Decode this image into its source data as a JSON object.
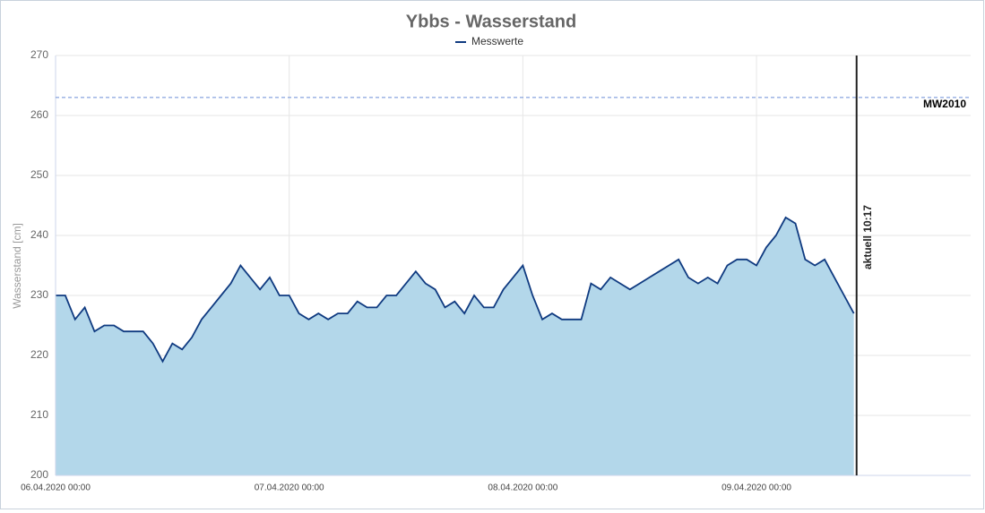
{
  "chart_data": {
    "type": "area",
    "title": "Ybbs - Wasserstand",
    "y_label": "Wasserstand [cm]",
    "legend": "top",
    "grid": true,
    "xlim": [
      "06.04.2020 00:00",
      "09.04.2020 22:00"
    ],
    "xticks": [
      "06.04.2020 00:00",
      "07.04.2020 00:00",
      "08.04.2020 00:00",
      "09.04.2020 00:00"
    ],
    "ylim": [
      200,
      270
    ],
    "yticks": [
      200,
      210,
      220,
      230,
      240,
      250,
      260,
      270
    ],
    "reference_line": {
      "value": 263,
      "label": "MW2010",
      "color": "#6b8fd6"
    },
    "current": {
      "x": "09.04.2020 10:17",
      "label": "aktuell 10:17"
    },
    "x": [
      "06.04.2020 00:00",
      "06.04.2020 01:00",
      "06.04.2020 02:00",
      "06.04.2020 03:00",
      "06.04.2020 04:00",
      "06.04.2020 05:00",
      "06.04.2020 06:00",
      "06.04.2020 07:00",
      "06.04.2020 08:00",
      "06.04.2020 09:00",
      "06.04.2020 10:00",
      "06.04.2020 11:00",
      "06.04.2020 12:00",
      "06.04.2020 13:00",
      "06.04.2020 14:00",
      "06.04.2020 15:00",
      "06.04.2020 16:00",
      "06.04.2020 17:00",
      "06.04.2020 18:00",
      "06.04.2020 19:00",
      "06.04.2020 20:00",
      "06.04.2020 21:00",
      "06.04.2020 22:00",
      "06.04.2020 23:00",
      "07.04.2020 00:00",
      "07.04.2020 01:00",
      "07.04.2020 02:00",
      "07.04.2020 03:00",
      "07.04.2020 04:00",
      "07.04.2020 05:00",
      "07.04.2020 06:00",
      "07.04.2020 07:00",
      "07.04.2020 08:00",
      "07.04.2020 09:00",
      "07.04.2020 10:00",
      "07.04.2020 11:00",
      "07.04.2020 12:00",
      "07.04.2020 13:00",
      "07.04.2020 14:00",
      "07.04.2020 15:00",
      "07.04.2020 16:00",
      "07.04.2020 17:00",
      "07.04.2020 18:00",
      "07.04.2020 19:00",
      "07.04.2020 20:00",
      "07.04.2020 21:00",
      "07.04.2020 22:00",
      "07.04.2020 23:00",
      "08.04.2020 00:00",
      "08.04.2020 01:00",
      "08.04.2020 02:00",
      "08.04.2020 03:00",
      "08.04.2020 04:00",
      "08.04.2020 05:00",
      "08.04.2020 06:00",
      "08.04.2020 07:00",
      "08.04.2020 08:00",
      "08.04.2020 09:00",
      "08.04.2020 10:00",
      "08.04.2020 11:00",
      "08.04.2020 12:00",
      "08.04.2020 13:00",
      "08.04.2020 14:00",
      "08.04.2020 15:00",
      "08.04.2020 16:00",
      "08.04.2020 17:00",
      "08.04.2020 18:00",
      "08.04.2020 19:00",
      "08.04.2020 20:00",
      "08.04.2020 21:00",
      "08.04.2020 22:00",
      "08.04.2020 23:00",
      "09.04.2020 00:00",
      "09.04.2020 01:00",
      "09.04.2020 02:00",
      "09.04.2020 03:00",
      "09.04.2020 04:00",
      "09.04.2020 05:00",
      "09.04.2020 06:00",
      "09.04.2020 07:00",
      "09.04.2020 08:00",
      "09.04.2020 09:00",
      "09.04.2020 10:00"
    ],
    "series": [
      {
        "name": "Messwerte",
        "color": "#0f3a80",
        "fill": "#b3d7ea",
        "values": [
          230,
          230,
          226,
          228,
          224,
          225,
          225,
          224,
          224,
          224,
          222,
          219,
          222,
          221,
          223,
          226,
          228,
          230,
          232,
          235,
          233,
          231,
          233,
          230,
          230,
          227,
          226,
          227,
          226,
          227,
          227,
          229,
          228,
          228,
          230,
          230,
          232,
          234,
          232,
          231,
          228,
          229,
          227,
          230,
          228,
          228,
          231,
          233,
          235,
          230,
          226,
          227,
          226,
          226,
          226,
          232,
          231,
          233,
          232,
          231,
          232,
          233,
          234,
          235,
          236,
          233,
          232,
          233,
          232,
          235,
          236,
          236,
          235,
          238,
          240,
          243,
          242,
          236,
          235,
          236,
          233,
          230,
          227
        ]
      }
    ]
  }
}
